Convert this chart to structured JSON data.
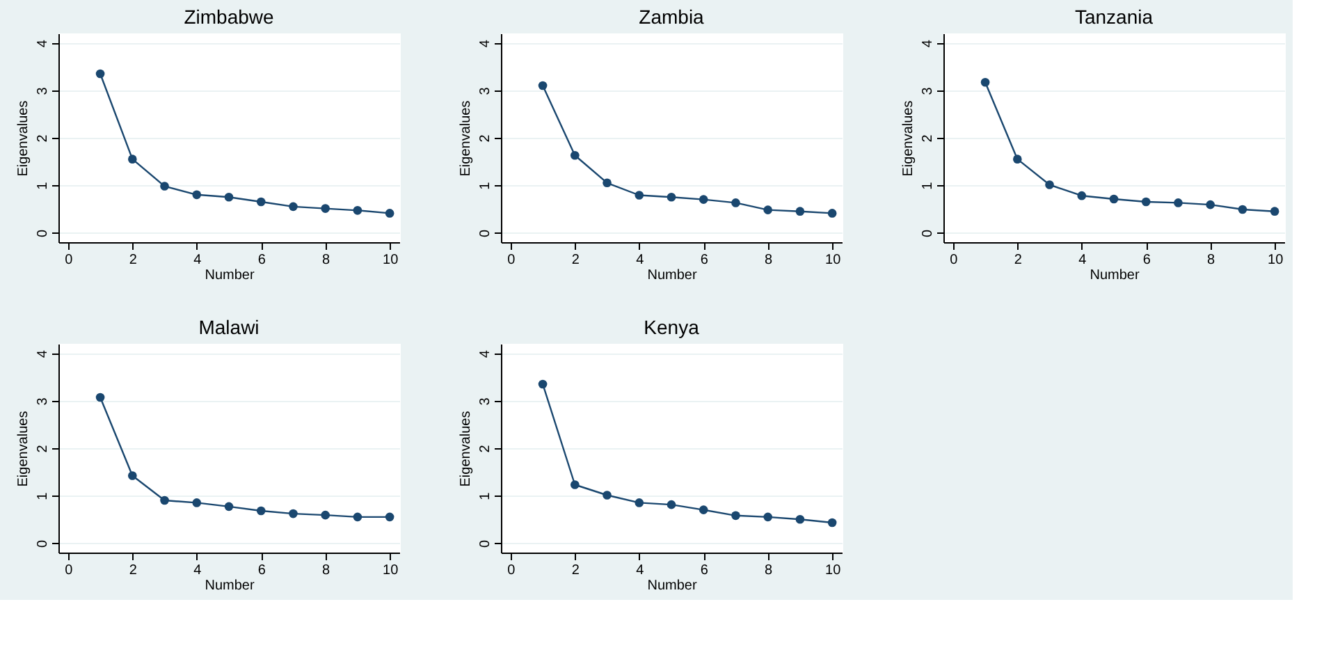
{
  "chart_data": [
    {
      "type": "line",
      "title": "Zimbabwe",
      "xlabel": "Number",
      "ylabel": "Eigenvalues",
      "x": [
        1,
        2,
        3,
        4,
        5,
        6,
        7,
        8,
        9,
        10
      ],
      "series": [
        {
          "color": "#1a476f",
          "values": [
            3.35,
            1.55,
            0.98,
            0.8,
            0.75,
            0.65,
            0.55,
            0.51,
            0.47,
            0.41
          ]
        }
      ],
      "xlim": [
        -0.3,
        10.3
      ],
      "xticks": [
        0,
        2,
        4,
        6,
        8,
        10
      ],
      "ylim": [
        -0.2,
        4.2
      ],
      "yticks": [
        0,
        1,
        2,
        3,
        4
      ],
      "grid": "y",
      "marker": "circle",
      "line_style": "solid"
    },
    {
      "type": "line",
      "title": "Zambia",
      "xlabel": "Number",
      "ylabel": "Eigenvalues",
      "x": [
        1,
        2,
        3,
        4,
        5,
        6,
        7,
        8,
        9,
        10
      ],
      "series": [
        {
          "color": "#1a476f",
          "values": [
            3.1,
            1.63,
            1.05,
            0.79,
            0.75,
            0.7,
            0.63,
            0.48,
            0.45,
            0.41
          ]
        }
      ],
      "xlim": [
        -0.3,
        10.3
      ],
      "xticks": [
        0,
        2,
        4,
        6,
        8,
        10
      ],
      "ylim": [
        -0.2,
        4.2
      ],
      "yticks": [
        0,
        1,
        2,
        3,
        4
      ],
      "grid": "y",
      "marker": "circle",
      "line_style": "solid"
    },
    {
      "type": "line",
      "title": "Tanzania",
      "xlabel": "Number",
      "ylabel": "Eigenvalues",
      "x": [
        1,
        2,
        3,
        4,
        5,
        6,
        7,
        8,
        9,
        10
      ],
      "series": [
        {
          "color": "#1a476f",
          "values": [
            3.17,
            1.55,
            1.01,
            0.78,
            0.71,
            0.65,
            0.63,
            0.59,
            0.49,
            0.45
          ]
        }
      ],
      "xlim": [
        -0.3,
        10.3
      ],
      "xticks": [
        0,
        2,
        4,
        6,
        8,
        10
      ],
      "ylim": [
        -0.2,
        4.2
      ],
      "yticks": [
        0,
        1,
        2,
        3,
        4
      ],
      "grid": "y",
      "marker": "circle",
      "line_style": "solid"
    },
    {
      "type": "line",
      "title": "Malawi",
      "xlabel": "Number",
      "ylabel": "Eigenvalues",
      "x": [
        1,
        2,
        3,
        4,
        5,
        6,
        7,
        8,
        9,
        10
      ],
      "series": [
        {
          "color": "#1a476f",
          "values": [
            3.07,
            1.42,
            0.9,
            0.85,
            0.77,
            0.68,
            0.62,
            0.59,
            0.55,
            0.55
          ]
        }
      ],
      "xlim": [
        -0.3,
        10.3
      ],
      "xticks": [
        0,
        2,
        4,
        6,
        8,
        10
      ],
      "ylim": [
        -0.2,
        4.2
      ],
      "yticks": [
        0,
        1,
        2,
        3,
        4
      ],
      "grid": "y",
      "marker": "circle",
      "line_style": "solid"
    },
    {
      "type": "line",
      "title": "Kenya",
      "xlabel": "Number",
      "ylabel": "Eigenvalues",
      "x": [
        1,
        2,
        3,
        4,
        5,
        6,
        7,
        8,
        9,
        10
      ],
      "series": [
        {
          "color": "#1a476f",
          "values": [
            3.35,
            1.23,
            1.01,
            0.85,
            0.81,
            0.7,
            0.58,
            0.55,
            0.5,
            0.43
          ]
        }
      ],
      "xlim": [
        -0.3,
        10.3
      ],
      "xticks": [
        0,
        2,
        4,
        6,
        8,
        10
      ],
      "ylim": [
        -0.2,
        4.2
      ],
      "yticks": [
        0,
        1,
        2,
        3,
        4
      ],
      "grid": "y",
      "marker": "circle",
      "line_style": "solid"
    }
  ]
}
